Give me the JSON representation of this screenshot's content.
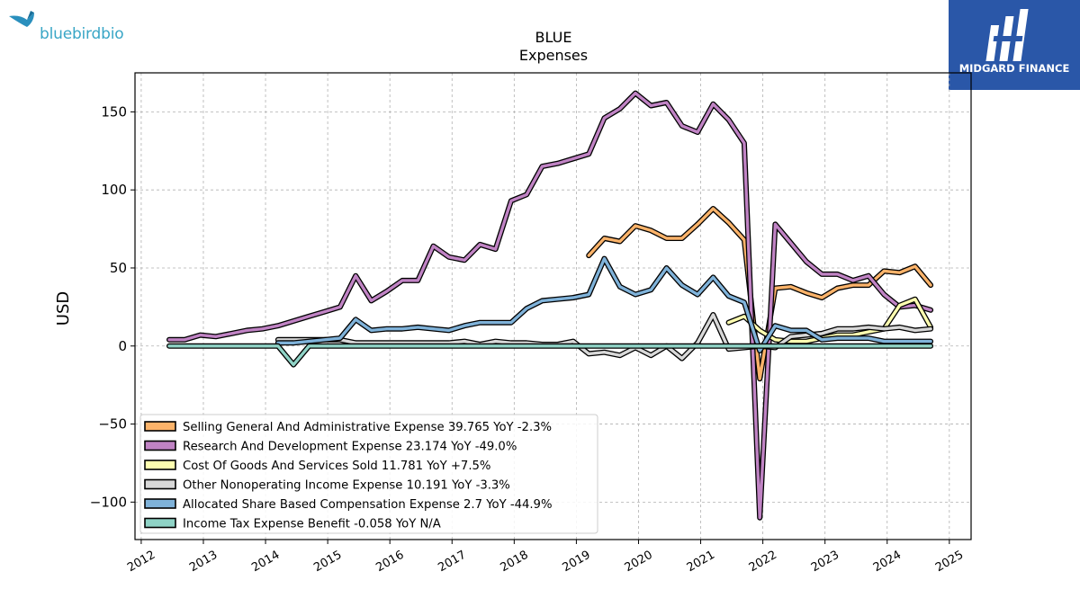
{
  "branding": {
    "left_logo": "bluebirdbio",
    "right_logo": "MIDGARD FINANCE"
  },
  "chart_data": {
    "type": "line",
    "title": "BLUE",
    "subtitle": "Expenses",
    "xlabel": "",
    "ylabel": "USD",
    "xlim": [
      2011.9,
      2025.35
    ],
    "ylim": [
      -124,
      175
    ],
    "x_ticks": [
      "2012",
      "2013",
      "2014",
      "2015",
      "2016",
      "2017",
      "2018",
      "2019",
      "2020",
      "2021",
      "2022",
      "2023",
      "2024",
      "2025"
    ],
    "y_ticks": [
      -100,
      -50,
      0,
      50,
      100,
      150
    ],
    "y_tick_labels": [
      "−100",
      "−50",
      "0",
      "50",
      "100",
      "150"
    ],
    "grid": true,
    "legend_position": "lower-left",
    "series": [
      {
        "name": "Selling General And Administrative Expense",
        "legend": "Selling General And Administrative Expense  39.765 YoY -2.3%",
        "color": "#fbb36a",
        "points": [
          [
            2019.2,
            58
          ],
          [
            2019.45,
            69
          ],
          [
            2019.7,
            67
          ],
          [
            2019.95,
            77
          ],
          [
            2020.2,
            74
          ],
          [
            2020.45,
            69
          ],
          [
            2020.7,
            69
          ],
          [
            2020.95,
            78
          ],
          [
            2021.2,
            88
          ],
          [
            2021.45,
            79
          ],
          [
            2021.7,
            68
          ],
          [
            2021.95,
            -21
          ],
          [
            2022.2,
            37
          ],
          [
            2022.45,
            38
          ],
          [
            2022.7,
            34
          ],
          [
            2022.95,
            31
          ],
          [
            2023.2,
            37
          ],
          [
            2023.45,
            39
          ],
          [
            2023.7,
            39
          ],
          [
            2023.95,
            48
          ],
          [
            2024.2,
            47
          ],
          [
            2024.45,
            51
          ],
          [
            2024.7,
            39
          ]
        ]
      },
      {
        "name": "Research And Development Expense",
        "legend": "Research And Development Expense  23.174 YoY -49.0%",
        "color": "#c083c4",
        "points": [
          [
            2012.45,
            4
          ],
          [
            2012.7,
            4
          ],
          [
            2012.95,
            7
          ],
          [
            2013.2,
            6
          ],
          [
            2013.45,
            8
          ],
          [
            2013.7,
            10
          ],
          [
            2013.95,
            11
          ],
          [
            2014.2,
            13
          ],
          [
            2014.45,
            16
          ],
          [
            2014.7,
            19
          ],
          [
            2014.95,
            22
          ],
          [
            2015.2,
            25
          ],
          [
            2015.45,
            45
          ],
          [
            2015.7,
            29
          ],
          [
            2015.95,
            35
          ],
          [
            2016.2,
            42
          ],
          [
            2016.45,
            42
          ],
          [
            2016.7,
            64
          ],
          [
            2016.95,
            57
          ],
          [
            2017.2,
            55
          ],
          [
            2017.45,
            65
          ],
          [
            2017.7,
            62
          ],
          [
            2017.95,
            93
          ],
          [
            2018.2,
            97
          ],
          [
            2018.45,
            115
          ],
          [
            2018.7,
            117
          ],
          [
            2018.95,
            120
          ],
          [
            2019.2,
            123
          ],
          [
            2019.45,
            146
          ],
          [
            2019.7,
            152
          ],
          [
            2019.95,
            162
          ],
          [
            2020.2,
            154
          ],
          [
            2020.45,
            156
          ],
          [
            2020.7,
            141
          ],
          [
            2020.95,
            137
          ],
          [
            2021.2,
            155
          ],
          [
            2021.45,
            145
          ],
          [
            2021.7,
            130
          ],
          [
            2021.95,
            -110
          ],
          [
            2022.2,
            78
          ],
          [
            2022.45,
            66
          ],
          [
            2022.7,
            54
          ],
          [
            2022.95,
            46
          ],
          [
            2023.2,
            46
          ],
          [
            2023.45,
            42
          ],
          [
            2023.7,
            45
          ],
          [
            2023.95,
            33
          ],
          [
            2024.2,
            25
          ],
          [
            2024.45,
            26
          ],
          [
            2024.7,
            23
          ]
        ]
      },
      {
        "name": "Cost Of Goods And Services Sold",
        "legend": "Cost Of Goods And Services Sold  11.781 YoY +7.5%",
        "color": "#fefeb0",
        "points": [
          [
            2021.45,
            15
          ],
          [
            2021.7,
            19
          ],
          [
            2021.95,
            10
          ],
          [
            2022.2,
            4
          ],
          [
            2022.45,
            3
          ],
          [
            2022.7,
            3
          ],
          [
            2022.95,
            5
          ],
          [
            2023.2,
            7
          ],
          [
            2023.45,
            7
          ],
          [
            2023.7,
            9
          ],
          [
            2023.95,
            11
          ],
          [
            2024.2,
            26
          ],
          [
            2024.45,
            30
          ],
          [
            2024.7,
            12
          ]
        ]
      },
      {
        "name": "Other Nonoperating Income Expense",
        "legend": "Other Nonoperating Income Expense  10.191 YoY -3.3%",
        "color": "#d8d8d8",
        "points": [
          [
            2014.2,
            4
          ],
          [
            2014.45,
            4
          ],
          [
            2014.7,
            4
          ],
          [
            2014.95,
            4
          ],
          [
            2015.2,
            4
          ],
          [
            2015.45,
            2
          ],
          [
            2015.7,
            2
          ],
          [
            2015.95,
            2
          ],
          [
            2016.2,
            2
          ],
          [
            2016.45,
            2
          ],
          [
            2016.7,
            2
          ],
          [
            2016.95,
            2
          ],
          [
            2017.2,
            3
          ],
          [
            2017.45,
            1
          ],
          [
            2017.7,
            3
          ],
          [
            2017.95,
            2
          ],
          [
            2018.2,
            2
          ],
          [
            2018.45,
            1
          ],
          [
            2018.7,
            1
          ],
          [
            2018.95,
            3
          ],
          [
            2019.2,
            -5
          ],
          [
            2019.45,
            -4
          ],
          [
            2019.7,
            -6
          ],
          [
            2019.95,
            -1
          ],
          [
            2020.2,
            -6
          ],
          [
            2020.45,
            0
          ],
          [
            2020.7,
            -8
          ],
          [
            2020.95,
            2
          ],
          [
            2021.2,
            20
          ],
          [
            2021.45,
            -2
          ],
          [
            2021.7,
            -1
          ],
          [
            2021.95,
            0
          ],
          [
            2022.2,
            -1
          ],
          [
            2022.45,
            6
          ],
          [
            2022.7,
            7
          ],
          [
            2022.95,
            8
          ],
          [
            2023.2,
            11
          ],
          [
            2023.45,
            11
          ],
          [
            2023.7,
            12
          ],
          [
            2023.95,
            11
          ],
          [
            2024.2,
            12
          ],
          [
            2024.45,
            10
          ],
          [
            2024.7,
            11
          ]
        ]
      },
      {
        "name": "Allocated Share Based Compensation Expense",
        "legend": "Allocated Share Based Compensation Expense  2.7 YoY -44.9%",
        "color": "#7fb2d9",
        "points": [
          [
            2014.2,
            2
          ],
          [
            2014.45,
            2
          ],
          [
            2014.7,
            3
          ],
          [
            2014.95,
            4
          ],
          [
            2015.2,
            5
          ],
          [
            2015.45,
            17
          ],
          [
            2015.7,
            10
          ],
          [
            2015.95,
            11
          ],
          [
            2016.2,
            11
          ],
          [
            2016.45,
            12
          ],
          [
            2016.7,
            11
          ],
          [
            2016.95,
            10
          ],
          [
            2017.2,
            13
          ],
          [
            2017.45,
            15
          ],
          [
            2017.7,
            15
          ],
          [
            2017.95,
            15
          ],
          [
            2018.2,
            24
          ],
          [
            2018.45,
            29
          ],
          [
            2018.7,
            30
          ],
          [
            2018.95,
            31
          ],
          [
            2019.2,
            33
          ],
          [
            2019.45,
            56
          ],
          [
            2019.7,
            38
          ],
          [
            2019.95,
            33
          ],
          [
            2020.2,
            36
          ],
          [
            2020.45,
            50
          ],
          [
            2020.7,
            39
          ],
          [
            2020.95,
            33
          ],
          [
            2021.2,
            44
          ],
          [
            2021.45,
            32
          ],
          [
            2021.7,
            28
          ],
          [
            2021.95,
            -3
          ],
          [
            2022.2,
            13
          ],
          [
            2022.45,
            10
          ],
          [
            2022.7,
            10
          ],
          [
            2022.95,
            4
          ],
          [
            2023.2,
            5
          ],
          [
            2023.45,
            5
          ],
          [
            2023.7,
            5
          ],
          [
            2023.95,
            3
          ],
          [
            2024.2,
            3
          ],
          [
            2024.45,
            3
          ],
          [
            2024.7,
            3
          ]
        ]
      },
      {
        "name": "Income Tax Expense Benefit",
        "legend": "Income Tax Expense Benefit  -0.058 YoY N/A",
        "color": "#8fd3c6",
        "points": [
          [
            2012.45,
            0
          ],
          [
            2012.95,
            0
          ],
          [
            2013.45,
            0
          ],
          [
            2013.95,
            0
          ],
          [
            2014.2,
            0
          ],
          [
            2014.45,
            -12
          ],
          [
            2014.7,
            0
          ],
          [
            2014.95,
            0
          ],
          [
            2015.45,
            0
          ],
          [
            2015.95,
            0
          ],
          [
            2016.45,
            0
          ],
          [
            2016.95,
            0
          ],
          [
            2017.45,
            0
          ],
          [
            2017.95,
            0
          ],
          [
            2018.45,
            0
          ],
          [
            2018.95,
            0
          ],
          [
            2019.45,
            0
          ],
          [
            2019.95,
            0
          ],
          [
            2020.45,
            0
          ],
          [
            2020.95,
            0
          ],
          [
            2021.45,
            0
          ],
          [
            2021.95,
            0
          ],
          [
            2022.45,
            0
          ],
          [
            2022.95,
            0
          ],
          [
            2023.45,
            0
          ],
          [
            2023.95,
            0
          ],
          [
            2024.45,
            0
          ],
          [
            2024.7,
            0
          ]
        ]
      }
    ]
  }
}
